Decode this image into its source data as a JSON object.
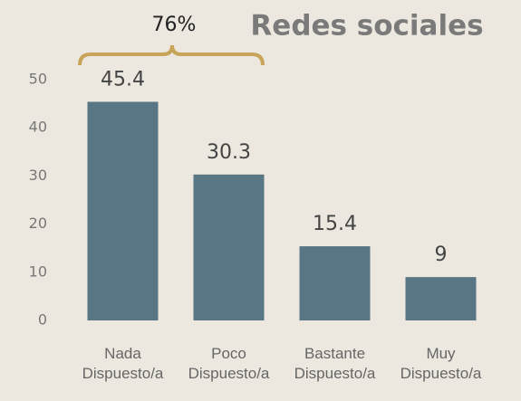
{
  "chart_data": {
    "type": "bar",
    "title": "Redes sociales",
    "annotation": "76%",
    "categories": [
      "Nada Dispuesto/a",
      "Poco Dispuesto/a",
      "Bastante Dispuesto/a",
      "Muy Dispuesto/a"
    ],
    "values": [
      45.4,
      30.3,
      15.4,
      9
    ],
    "color": "#587684",
    "ylim": [
      0,
      50
    ],
    "yticks": [
      0,
      10,
      20,
      30,
      40,
      50
    ],
    "grid": false
  }
}
